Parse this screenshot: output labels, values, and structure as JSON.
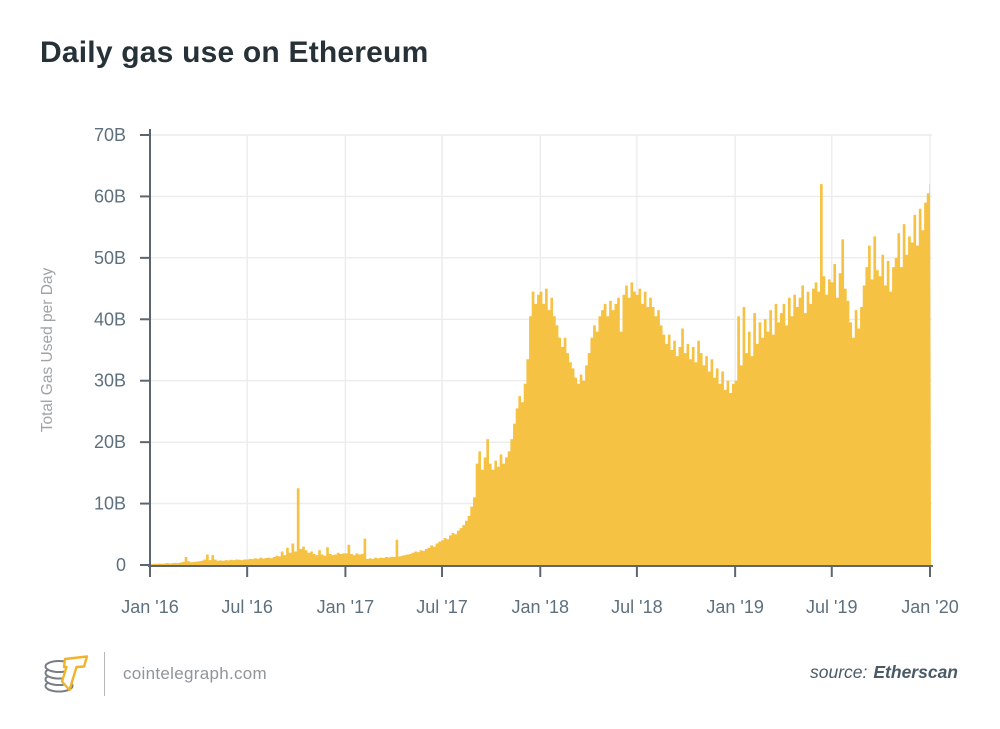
{
  "title": "Daily gas use on Ethereum",
  "footer": {
    "site": "cointelegraph.com",
    "logo_icon": "cointelegraph-coin-logo",
    "source_label": "source:",
    "source_name": "Etherscan"
  },
  "colors": {
    "area": "#F6C243",
    "title_text": "#263238",
    "axis": "#5C6670",
    "tick_label": "#5E707E",
    "axis_title": "#9EA3A8",
    "grid": "#ECECEC",
    "footer_text": "#8E959B",
    "source_text": "#4A5A66",
    "logo_gold": "#F0B42B",
    "logo_gray": "#787E84"
  },
  "chart_data": {
    "type": "area",
    "title": "Daily gas use on Ethereum",
    "xlabel": "",
    "ylabel": "Total Gas Used per Day",
    "unit": "billions of gas per day",
    "ylim": [
      0,
      70
    ],
    "y_ticks": [
      "0",
      "10B",
      "20B",
      "30B",
      "40B",
      "50B",
      "60B",
      "70B"
    ],
    "x_ticks": [
      "Jan '16",
      "Jul '16",
      "Jan '17",
      "Jul '17",
      "Jan '18",
      "Jul '18",
      "Jan '19",
      "Jul '19",
      "Jan '20"
    ],
    "x_tick_days": [
      0,
      182,
      366,
      547,
      731,
      912,
      1096,
      1277,
      1461
    ],
    "total_days": 1460,
    "interval_days": 5,
    "grid": true,
    "legend": false,
    "series_name": "Total gas used per day (billions)",
    "values": [
      0.15,
      0.2,
      0.2,
      0.25,
      0.2,
      0.25,
      0.3,
      0.25,
      0.3,
      0.35,
      0.3,
      0.4,
      0.5,
      1.3,
      0.6,
      0.45,
      0.5,
      0.55,
      0.6,
      0.7,
      0.9,
      1.7,
      0.8,
      1.6,
      0.9,
      0.7,
      0.75,
      0.7,
      0.8,
      0.75,
      0.85,
      0.8,
      0.9,
      0.85,
      0.8,
      0.9,
      0.9,
      1.0,
      0.95,
      1.1,
      1.0,
      1.2,
      1.05,
      1.15,
      1.2,
      1.1,
      1.3,
      1.5,
      1.4,
      2.2,
      1.6,
      2.8,
      2.0,
      3.5,
      2.2,
      12.5,
      2.6,
      3.0,
      2.4,
      2.0,
      2.2,
      1.8,
      1.6,
      2.4,
      1.7,
      1.5,
      2.9,
      1.8,
      1.6,
      1.7,
      2.0,
      1.8,
      1.9,
      1.9,
      3.3,
      1.8,
      1.6,
      1.9,
      1.7,
      1.8,
      4.3,
      1.0,
      1.1,
      1.0,
      1.2,
      1.1,
      1.2,
      1.15,
      1.3,
      1.25,
      1.35,
      1.3,
      4.1,
      1.4,
      1.5,
      1.6,
      1.7,
      1.8,
      2.0,
      2.2,
      2.1,
      2.4,
      2.3,
      2.6,
      2.8,
      3.2,
      3.0,
      3.5,
      3.8,
      4.0,
      4.4,
      4.2,
      4.8,
      5.2,
      5.0,
      5.6,
      6.0,
      6.5,
      7.2,
      8.0,
      9.5,
      11.0,
      16.5,
      18.5,
      15.5,
      17.5,
      20.5,
      16.5,
      15.5,
      17.0,
      16.0,
      18.0,
      16.5,
      17.5,
      18.5,
      20.5,
      23.0,
      25.5,
      27.5,
      26.5,
      29.5,
      33.5,
      40.5,
      44.5,
      42.5,
      44.0,
      44.5,
      42.5,
      45.0,
      41.5,
      43.5,
      40.5,
      39.0,
      37.0,
      35.5,
      37.0,
      34.5,
      33.0,
      32.0,
      30.5,
      29.5,
      31.0,
      30.0,
      32.5,
      34.5,
      37.0,
      39.0,
      38.0,
      40.5,
      41.5,
      42.5,
      40.5,
      43.0,
      41.5,
      42.5,
      43.5,
      38.0,
      44.0,
      45.5,
      43.5,
      46.0,
      44.5,
      44.0,
      45.0,
      42.5,
      44.5,
      42.0,
      43.5,
      42.0,
      40.5,
      41.5,
      39.0,
      37.5,
      36.0,
      37.5,
      35.0,
      36.5,
      34.0,
      35.5,
      38.5,
      34.5,
      36.0,
      33.5,
      35.5,
      33.0,
      36.5,
      34.5,
      32.5,
      34.0,
      31.5,
      33.5,
      30.5,
      32.0,
      29.5,
      31.5,
      28.5,
      30.0,
      28.0,
      29.5,
      30.0,
      40.5,
      32.5,
      42.0,
      34.5,
      38.0,
      34.0,
      41.0,
      36.0,
      39.5,
      37.0,
      40.0,
      38.0,
      41.5,
      37.5,
      42.5,
      39.5,
      41.0,
      42.5,
      39.0,
      43.5,
      40.5,
      44.0,
      42.0,
      43.5,
      45.5,
      41.0,
      44.5,
      42.5,
      45.0,
      46.0,
      44.5,
      62.0,
      47.0,
      44.0,
      46.5,
      46.0,
      49.0,
      43.5,
      47.5,
      53.0,
      45.0,
      43.0,
      39.5,
      37.0,
      41.5,
      38.5,
      42.0,
      45.5,
      48.5,
      52.0,
      46.5,
      53.5,
      48.0,
      47.0,
      50.5,
      45.5,
      49.5,
      44.5,
      48.5,
      50.0,
      54.0,
      48.5,
      55.5,
      50.5,
      53.5,
      52.5,
      57.0,
      52.0,
      58.0,
      54.5,
      59.0,
      60.5,
      62.0
    ]
  }
}
